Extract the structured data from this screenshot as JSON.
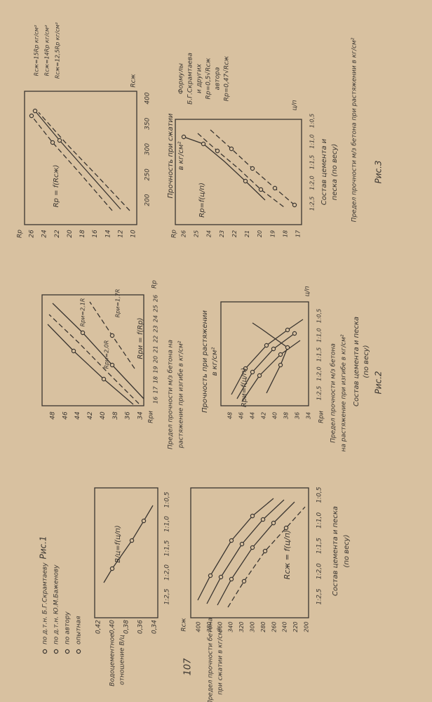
{
  "page_number": "107",
  "figures": [
    {
      "caption": "Рис.1",
      "legend": [
        "по д.т.н. Б.Г.Скрамтаеву",
        "по д.т.н. Ю.М.Баженову",
        "по автору",
        "опытная"
      ],
      "charts": [
        {
          "formula": "В/ц=f(ц/п)",
          "y_label": [
            "Водоцементное",
            "отношение В/ц"
          ],
          "yticks": [
            "0,42",
            "0,40",
            "0,38",
            "0,36",
            "0,34"
          ],
          "xticks": [
            "1:2,5",
            "1:2,0",
            "1:1,5",
            "1:1,0",
            "1:0,5"
          ]
        },
        {
          "formula": "Rсж = f(ц/п)",
          "y_axis": "Rсж",
          "y_label": [
            "Предел прочности бетона",
            "при сжатии в кг/см²"
          ],
          "yticks": [
            400,
            380,
            360,
            340,
            320,
            300,
            280,
            260,
            240,
            220,
            200
          ],
          "xticks": [
            "1:2,5",
            "1:2,0",
            "1:1,5",
            "1:1,0",
            "1:0,5"
          ],
          "x_label": [
            "Состав цемента и песка",
            "(по весу)"
          ]
        }
      ]
    },
    {
      "caption": "Рис.2",
      "charts": [
        {
          "formula": "Rри = f(Rр)",
          "y_axis": "Rри",
          "x_axis": "Rр",
          "y_label": [
            "Предел прочности м/з бетона на",
            "растяжение при изгибе в кг/см²"
          ],
          "yticks": [
            48,
            46,
            44,
            42,
            40,
            38,
            36,
            34
          ],
          "xticks": [
            16,
            17,
            18,
            19,
            20,
            21,
            22,
            23,
            24,
            25,
            26
          ],
          "annotations": [
            "Rри=2,1R",
            "Rри=2,0R",
            "Rри=1,7R"
          ]
        },
        {
          "formula": "Rри=f(ц/п)",
          "y_axis": "Rри",
          "x_axis": "ц/п",
          "top_label": [
            "Прочность при растяжении",
            "в кг/см²"
          ],
          "y_label": [
            "Предел прочности м/з бетона",
            "на растяжение при изгибе в кг/см²"
          ],
          "yticks": [
            48,
            46,
            44,
            42,
            40,
            38,
            36,
            34
          ],
          "xticks": [
            "1:2,5",
            "1:2,0",
            "1:1,5",
            "1:1,0",
            "1:0,5"
          ],
          "x_label": [
            "Состав цемента и песка",
            "(по весу)"
          ]
        }
      ]
    },
    {
      "caption": "Рис.3",
      "y_label": "Предел прочности м/з бетона при растяжении в кг/см²",
      "charts": [
        {
          "formula": "Rр = f(Rсж)",
          "y_axis": "Rр",
          "x_axis": "Rсж",
          "yticks": [
            26,
            24,
            22,
            20,
            18,
            16,
            14,
            12,
            10
          ],
          "xticks": [
            200,
            250,
            300,
            350,
            400
          ],
          "annotations": [
            "Rсж=15Rр кг/см²",
            "Rсж=14Rр кг/см²",
            "Rсж=12,5Rр кг/см²"
          ],
          "x_label": [
            "Прочность при сжатии",
            "в кг/см²"
          ]
        },
        {
          "formula": "Rр=f(ц/п)",
          "y_axis": "Rр",
          "x_axis": "ц/п",
          "yticks": [
            26,
            25,
            24,
            23,
            22,
            21,
            20,
            19,
            18,
            17
          ],
          "xticks": [
            "1:2,5",
            "1:2,0",
            "1:1,5",
            "1:1,0",
            "1:0,5"
          ],
          "legend": [
            "Формулы",
            "Б.Г.Скрамтаева",
            "и других",
            "Rр=0,5√Rсж",
            "автора",
            "Rр=0,47√Rсж"
          ],
          "x_label": [
            "Состав цемента и",
            "песка (по весу)"
          ]
        }
      ]
    }
  ]
}
